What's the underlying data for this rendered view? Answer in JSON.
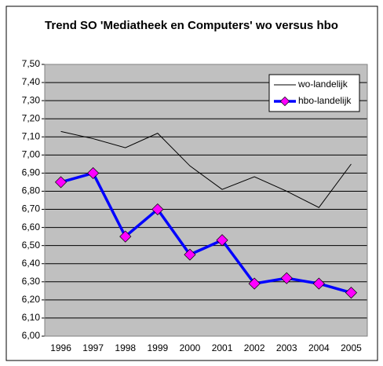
{
  "chart_data": {
    "type": "line",
    "title": "Trend SO 'Mediatheek en Computers' wo versus hbo",
    "categories": [
      "1996",
      "1997",
      "1998",
      "1999",
      "2000",
      "2001",
      "2002",
      "2003",
      "2004",
      "2005"
    ],
    "series": [
      {
        "name": "wo-landelijk",
        "color": "#000000",
        "values": [
          7.13,
          7.09,
          7.04,
          7.12,
          6.94,
          6.81,
          6.88,
          6.8,
          6.71,
          6.95
        ]
      },
      {
        "name": "hbo-landelijk",
        "color": "#0000ff",
        "marker_color": "#ff00ff",
        "values": [
          6.85,
          6.9,
          6.55,
          6.7,
          6.45,
          6.53,
          6.29,
          6.32,
          6.29,
          6.24
        ]
      }
    ],
    "ylim": [
      6.0,
      7.5
    ],
    "yticks": [
      {
        "value": 6.0,
        "label": "6,00"
      },
      {
        "value": 6.1,
        "label": "6,10"
      },
      {
        "value": 6.2,
        "label": "6,20"
      },
      {
        "value": 6.3,
        "label": "6,30"
      },
      {
        "value": 6.4,
        "label": "6,40"
      },
      {
        "value": 6.5,
        "label": "6,50"
      },
      {
        "value": 6.6,
        "label": "6,60"
      },
      {
        "value": 6.7,
        "label": "6,70"
      },
      {
        "value": 6.8,
        "label": "6,80"
      },
      {
        "value": 6.9,
        "label": "6,90"
      },
      {
        "value": 7.0,
        "label": "7,00"
      },
      {
        "value": 7.1,
        "label": "7,10"
      },
      {
        "value": 7.2,
        "label": "7,20"
      },
      {
        "value": 7.3,
        "label": "7,30"
      },
      {
        "value": 7.4,
        "label": "7,40"
      },
      {
        "value": 7.5,
        "label": "7,50"
      }
    ],
    "grid": true,
    "legend": "upper right",
    "plot_background": "#c0c0c0"
  }
}
